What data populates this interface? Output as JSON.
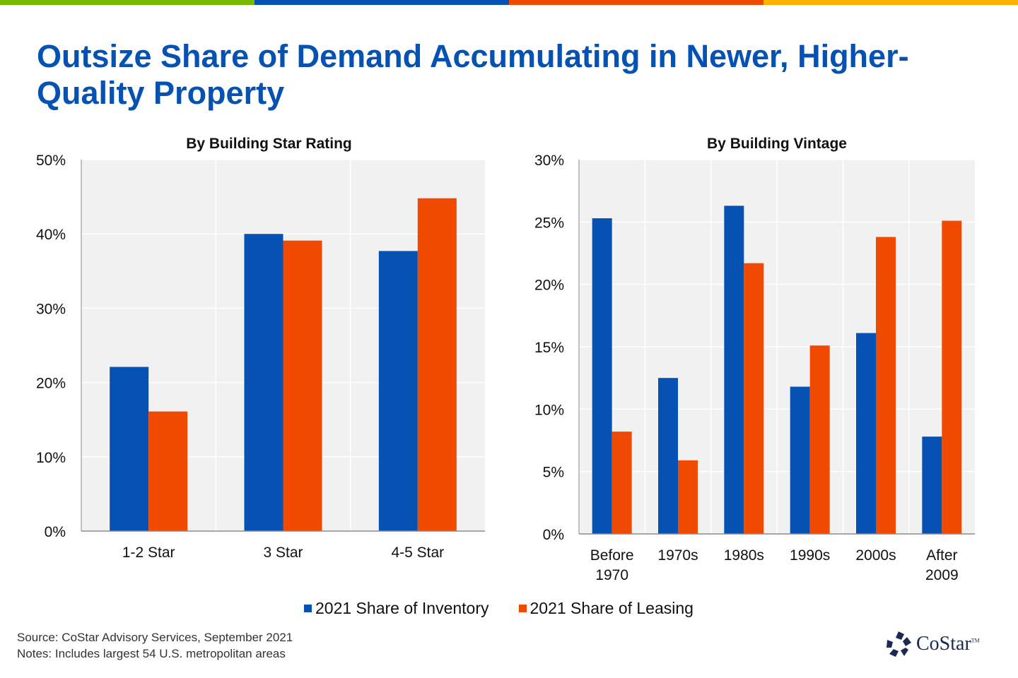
{
  "top_bar_colors": [
    "#76b900",
    "#0652b3",
    "#ef4a00",
    "#ffb300"
  ],
  "title": "Outsize Share of Demand Accumulating in Newer, Higher-Quality Property",
  "colors": {
    "inventory": "#0652b3",
    "leasing": "#ef4a00",
    "plot_bg": "#f1f1f1",
    "title": "#0652b3"
  },
  "legend": [
    {
      "label": "2021 Share of Inventory",
      "color": "#0652b3"
    },
    {
      "label": "2021 Share of Leasing",
      "color": "#ef4a00"
    }
  ],
  "footer": {
    "source": "Source: CoStar Advisory Services, September 2021",
    "notes": "Notes: Includes largest 54 U.S. metropolitan areas",
    "logo_text": "CoStar",
    "logo_tm": "TM"
  },
  "chart_data": [
    {
      "type": "bar",
      "title": "By Building Star Rating",
      "xlabel": "",
      "ylabel": "",
      "categories": [
        "1-2 Star",
        "3 Star",
        "4-5 Star"
      ],
      "series": [
        {
          "name": "2021 Share of Inventory",
          "values": [
            22.1,
            40.0,
            37.7
          ]
        },
        {
          "name": "2021 Share of Leasing",
          "values": [
            16.1,
            39.1,
            44.8
          ]
        }
      ],
      "ylim": [
        0,
        50
      ],
      "yticks": [
        0,
        10,
        20,
        30,
        40,
        50
      ],
      "ytick_labels": [
        "0%",
        "10%",
        "20%",
        "30%",
        "40%",
        "50%"
      ],
      "grid": true,
      "legend_position": "bottom"
    },
    {
      "type": "bar",
      "title": "By Building Vintage",
      "xlabel": "",
      "ylabel": "",
      "categories": [
        "Before 1970",
        "1970s",
        "1980s",
        "1990s",
        "2000s",
        "After 2009"
      ],
      "category_lines": [
        [
          "Before",
          "1970"
        ],
        [
          "1970s"
        ],
        [
          "1980s"
        ],
        [
          "1990s"
        ],
        [
          "2000s"
        ],
        [
          "After",
          "2009"
        ]
      ],
      "series": [
        {
          "name": "2021 Share of Inventory",
          "values": [
            25.3,
            12.5,
            26.3,
            11.8,
            16.1,
            7.8
          ]
        },
        {
          "name": "2021 Share of Leasing",
          "values": [
            8.2,
            5.9,
            21.7,
            15.1,
            23.8,
            25.1
          ]
        }
      ],
      "ylim": [
        0,
        30
      ],
      "yticks": [
        0,
        5,
        10,
        15,
        20,
        25,
        30
      ],
      "ytick_labels": [
        "0%",
        "5%",
        "10%",
        "15%",
        "20%",
        "25%",
        "30%"
      ],
      "grid": true,
      "legend_position": "bottom"
    }
  ]
}
